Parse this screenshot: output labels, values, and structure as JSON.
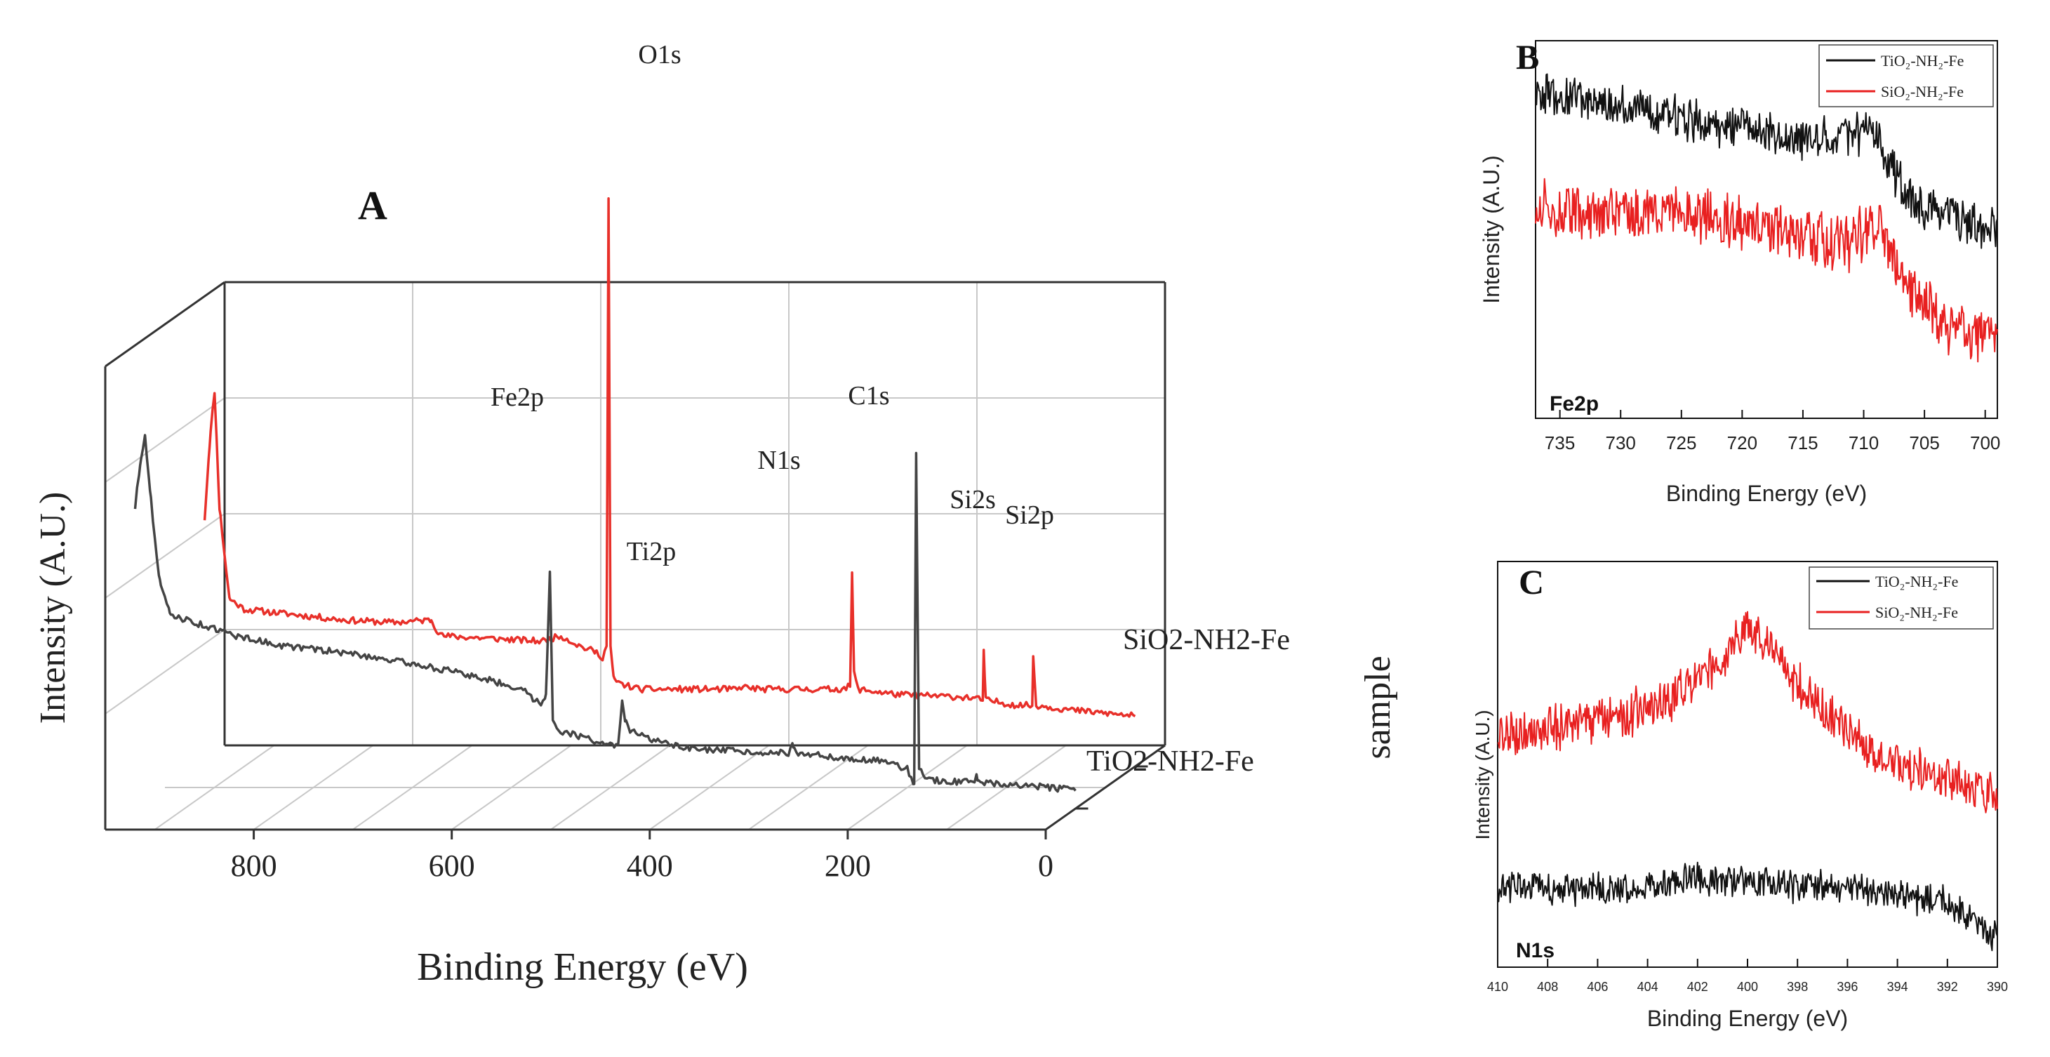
{
  "chart_data": [
    {
      "panel": "A",
      "type": "line",
      "style": "3d-waterfall",
      "title": "",
      "xlabel": "Binding Energy (eV)",
      "ylabel": "Intensity (A.U.)",
      "zlabel": "sample",
      "xlim": [
        0,
        950
      ],
      "xticks": [
        800,
        600,
        400,
        200,
        0
      ],
      "series": [
        {
          "name": "SiO2-NH2-Fe",
          "color": "#e8302a",
          "points": [
            [
              940,
              0.32
            ],
            [
              935,
              0.46
            ],
            [
              930,
              0.56
            ],
            [
              925,
              0.34
            ],
            [
              915,
              0.17
            ],
            [
              900,
              0.15
            ],
            [
              850,
              0.14
            ],
            [
              800,
              0.13
            ],
            [
              750,
              0.125
            ],
            [
              711,
              0.13
            ],
            [
              705,
              0.11
            ],
            [
              700,
              0.1
            ],
            [
              650,
              0.095
            ],
            [
              600,
              0.09
            ],
            [
              580,
              0.1
            ],
            [
              560,
              0.08
            ],
            [
              545,
              0.07
            ],
            [
              538,
              0.06
            ],
            [
              534,
              0.08
            ],
            [
              532,
              0.92
            ],
            [
              530,
              0.08
            ],
            [
              527,
              0.02
            ],
            [
              520,
              0.01
            ],
            [
              500,
              0.0
            ],
            [
              420,
              0.0
            ],
            [
              399,
              0.0
            ],
            [
              398,
              0.005
            ],
            [
              380,
              0.0
            ],
            [
              300,
              0.0
            ],
            [
              288,
              0.005
            ],
            [
              286,
              0.22
            ],
            [
              284,
              0.03
            ],
            [
              280,
              0.0
            ],
            [
              240,
              -0.01
            ],
            [
              170,
              -0.015
            ],
            [
              154,
              -0.02
            ],
            [
              153,
              0.07
            ],
            [
              151,
              -0.02
            ],
            [
              120,
              -0.03
            ],
            [
              104,
              -0.03
            ],
            [
              103,
              0.06
            ],
            [
              100,
              -0.03
            ],
            [
              80,
              -0.035
            ],
            [
              60,
              -0.04
            ],
            [
              30,
              -0.045
            ],
            [
              0,
              -0.05
            ]
          ]
        },
        {
          "name": "TiO2-NH2-Fe",
          "color": "#444444",
          "points": [
            [
              950,
              0.42
            ],
            [
              945,
              0.5
            ],
            [
              940,
              0.56
            ],
            [
              935,
              0.45
            ],
            [
              925,
              0.28
            ],
            [
              915,
              0.22
            ],
            [
              900,
              0.21
            ],
            [
              850,
              0.18
            ],
            [
              800,
              0.16
            ],
            [
              750,
              0.15
            ],
            [
              711,
              0.14
            ],
            [
              650,
              0.12
            ],
            [
              600,
              0.1
            ],
            [
              560,
              0.08
            ],
            [
              540,
              0.05
            ],
            [
              535,
              0.07
            ],
            [
              531,
              0.3
            ],
            [
              528,
              0.02
            ],
            [
              520,
              0.0
            ],
            [
              480,
              -0.02
            ],
            [
              462,
              -0.03
            ],
            [
              458,
              0.06
            ],
            [
              455,
              0.02
            ],
            [
              450,
              0.0
            ],
            [
              420,
              -0.02
            ],
            [
              400,
              -0.03
            ],
            [
              380,
              -0.035
            ],
            [
              300,
              -0.04
            ],
            [
              290,
              -0.04
            ],
            [
              285,
              -0.025
            ],
            [
              280,
              -0.04
            ],
            [
              260,
              -0.045
            ],
            [
              240,
              -0.05
            ],
            [
              200,
              -0.055
            ],
            [
              170,
              -0.07
            ],
            [
              163,
              -0.1
            ],
            [
              161,
              0.52
            ],
            [
              158,
              -0.07
            ],
            [
              150,
              -0.09
            ],
            [
              120,
              -0.095
            ],
            [
              102,
              -0.095
            ],
            [
              100,
              -0.085
            ],
            [
              99,
              -0.095
            ],
            [
              60,
              -0.1
            ],
            [
              30,
              -0.105
            ],
            [
              0,
              -0.11
            ]
          ]
        }
      ],
      "annotations": [
        "O1s",
        "Fe2p",
        "C1s",
        "N1s",
        "Ti2p",
        "Si2s",
        "Si2p"
      ]
    },
    {
      "panel": "B",
      "type": "line",
      "title": "",
      "xlabel": "Binding Energy (eV)",
      "ylabel": "Intensity (A.U.)",
      "xlim": [
        737,
        699
      ],
      "ylim": [
        0,
        1
      ],
      "xticks": [
        735,
        730,
        725,
        720,
        715,
        710,
        705,
        700
      ],
      "legend_position": "top-right",
      "corner_label": "Fe2p",
      "series": [
        {
          "name": "TiO2-NH2-Fe",
          "color": "#111111",
          "noise": 0.05,
          "points": [
            [
              737,
              0.86
            ],
            [
              730,
              0.83
            ],
            [
              725,
              0.79
            ],
            [
              720,
              0.77
            ],
            [
              715,
              0.74
            ],
            [
              711,
              0.75
            ],
            [
              709,
              0.76
            ],
            [
              707,
              0.62
            ],
            [
              705,
              0.55
            ],
            [
              700,
              0.5
            ]
          ]
        },
        {
          "name": "SiO2-NH2-Fe",
          "color": "#e82020",
          "noise": 0.065,
          "points": [
            [
              737,
              0.56
            ],
            [
              730,
              0.54
            ],
            [
              725,
              0.55
            ],
            [
              720,
              0.52
            ],
            [
              715,
              0.48
            ],
            [
              711,
              0.46
            ],
            [
              709,
              0.53
            ],
            [
              708,
              0.45
            ],
            [
              706,
              0.33
            ],
            [
              703,
              0.25
            ],
            [
              700,
              0.22
            ]
          ]
        }
      ]
    },
    {
      "panel": "C",
      "type": "line",
      "title": "",
      "xlabel": "Binding Energy (eV)",
      "ylabel": "Intensity (A.U.)",
      "xlim": [
        410,
        390
      ],
      "ylim": [
        0,
        1
      ],
      "xticks": [
        410,
        408,
        406,
        404,
        402,
        400,
        398,
        396,
        394,
        392,
        390
      ],
      "legend_position": "top-right",
      "corner_label": "N1s",
      "series": [
        {
          "name": "TiO2-NH2-Fe",
          "color": "#111111",
          "noise": 0.035,
          "points": [
            [
              410,
              0.2
            ],
            [
              405,
              0.19
            ],
            [
              402,
              0.22
            ],
            [
              398,
              0.2
            ],
            [
              395,
              0.19
            ],
            [
              392,
              0.16
            ],
            [
              391,
              0.12
            ],
            [
              390.5,
              0.08
            ]
          ]
        },
        {
          "name": "SiO2-NH2-Fe",
          "color": "#e82020",
          "noise": 0.05,
          "points": [
            [
              410,
              0.58
            ],
            [
              406,
              0.6
            ],
            [
              403,
              0.66
            ],
            [
              401,
              0.76
            ],
            [
              400,
              0.84
            ],
            [
              399,
              0.77
            ],
            [
              397,
              0.63
            ],
            [
              395,
              0.53
            ],
            [
              393,
              0.48
            ],
            [
              390.5,
              0.43
            ]
          ]
        }
      ]
    }
  ],
  "labels": {
    "panel_a": "A",
    "panel_b": "B",
    "panel_c": "C",
    "legend_b_1": "TiO₂-NH₂-Fe",
    "legend_b_2": "SiO₂-NH₂-Fe",
    "legend_c_1": "TiO₂-NH₂-Fe",
    "legend_c_2": "SiO₂-NH₂-Fe"
  }
}
